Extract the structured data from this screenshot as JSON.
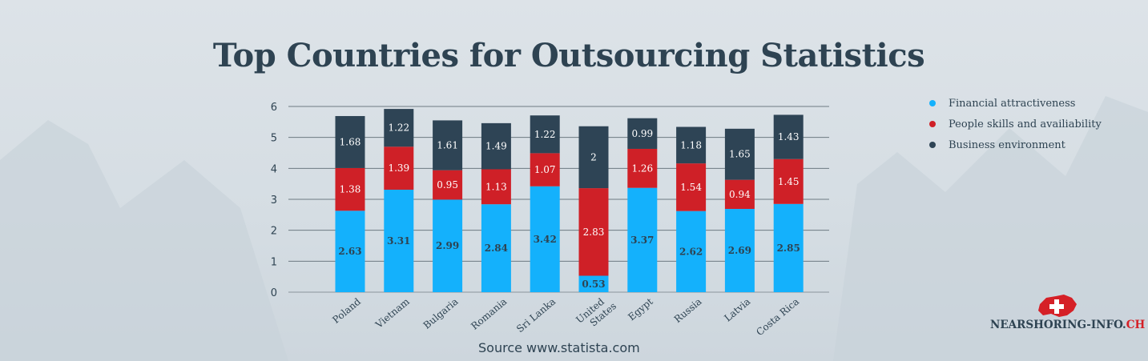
{
  "chart_data": {
    "type": "bar",
    "stacked": true,
    "title": "Top Countries for Outsourcing Statistics",
    "xlabel": "",
    "ylabel": "",
    "ylim": [
      0,
      6
    ],
    "yticks": [
      0,
      1,
      2,
      3,
      4,
      5,
      6
    ],
    "grid": true,
    "legend_position": "right",
    "categories": [
      "Poland",
      "Vietnam",
      "Bulgaria",
      "Romania",
      "Sri Lanka",
      "United States",
      "Egypt",
      "Russia",
      "Latvia",
      "Costa Rica"
    ],
    "series": [
      {
        "name": "Financial attractiveness",
        "color": "#14b1fc",
        "label_color": "#2e4352",
        "values": [
          2.63,
          3.31,
          2.99,
          2.84,
          3.42,
          0.53,
          3.37,
          2.62,
          2.69,
          2.85
        ]
      },
      {
        "name": "People skills and availiability",
        "color": "#cf2027",
        "label_color": "#ffffff",
        "values": [
          1.38,
          1.39,
          0.95,
          1.13,
          1.07,
          2.83,
          1.26,
          1.54,
          0.94,
          1.45
        ]
      },
      {
        "name": "Business environment",
        "color": "#2e4455",
        "label_color": "#ffffff",
        "values": [
          1.68,
          1.22,
          1.61,
          1.49,
          1.22,
          2,
          0.99,
          1.18,
          1.65,
          1.43
        ]
      }
    ]
  },
  "source": "Source www.statista.com",
  "logo": {
    "text_main": "NEARSHORING-INFO.",
    "text_accent": "CH"
  }
}
